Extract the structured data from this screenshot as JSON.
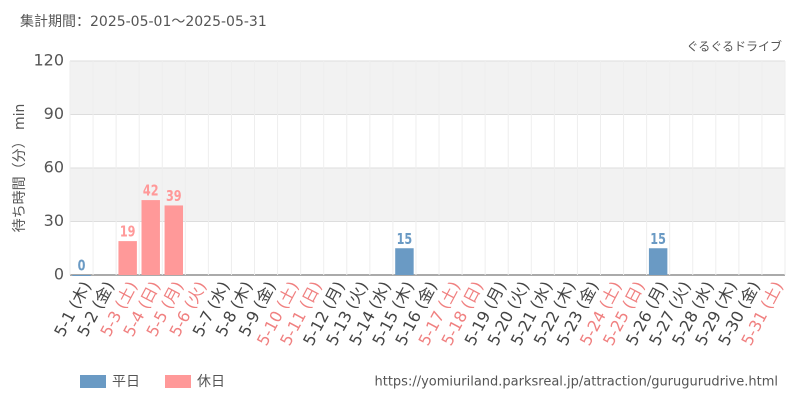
{
  "chart_data": {
    "type": "bar",
    "subtitle": "集計期間：2025-05-01〜2025-05-31",
    "title": "ぐるぐるドライブ",
    "y_label": "待ち時間（分） min",
    "source": "https://yomiuriland.parksreal.jp/attraction/gurugurudrive.html",
    "categories": [
      "5-1 (木)",
      "5-2 (金)",
      "5-3 (土)",
      "5-4 (日)",
      "5-5 (月)",
      "5-6 (火)",
      "5-7 (水)",
      "5-8 (木)",
      "5-9 (金)",
      "5-10 (土)",
      "5-11 (日)",
      "5-12 (月)",
      "5-13 (火)",
      "5-14 (水)",
      "5-15 (木)",
      "5-16 (金)",
      "5-17 (土)",
      "5-18 (日)",
      "5-19 (月)",
      "5-20 (火)",
      "5-21 (水)",
      "5-22 (木)",
      "5-23 (金)",
      "5-24 (土)",
      "5-25 (日)",
      "5-26 (月)",
      "5-27 (火)",
      "5-28 (水)",
      "5-29 (木)",
      "5-30 (金)",
      "5-31 (土)"
    ],
    "category_colors": [
      "#444",
      "#444",
      "#f08080",
      "#f08080",
      "#f08080",
      "#f08080",
      "#444",
      "#444",
      "#444",
      "#f08080",
      "#f08080",
      "#444",
      "#444",
      "#444",
      "#444",
      "#444",
      "#f08080",
      "#f08080",
      "#444",
      "#444",
      "#444",
      "#444",
      "#444",
      "#f08080",
      "#f08080",
      "#444",
      "#444",
      "#444",
      "#444",
      "#444",
      "#f08080"
    ],
    "series": [
      {
        "name": "平日",
        "color": "#6a9ac4",
        "values": [
          0,
          null,
          null,
          null,
          null,
          null,
          null,
          null,
          null,
          null,
          null,
          null,
          null,
          null,
          15,
          null,
          null,
          null,
          null,
          null,
          null,
          null,
          null,
          null,
          null,
          15,
          null,
          null,
          null,
          null,
          null
        ]
      },
      {
        "name": "休日",
        "color": "#ff9999",
        "values": [
          null,
          null,
          19,
          42,
          39,
          null,
          null,
          null,
          null,
          null,
          null,
          null,
          null,
          null,
          null,
          null,
          null,
          null,
          null,
          null,
          null,
          null,
          null,
          null,
          null,
          null,
          null,
          null,
          null,
          null,
          null
        ]
      }
    ],
    "ylim": [
      0,
      120
    ],
    "yticks": [
      0,
      30,
      60,
      90,
      120
    ],
    "grid": true
  }
}
